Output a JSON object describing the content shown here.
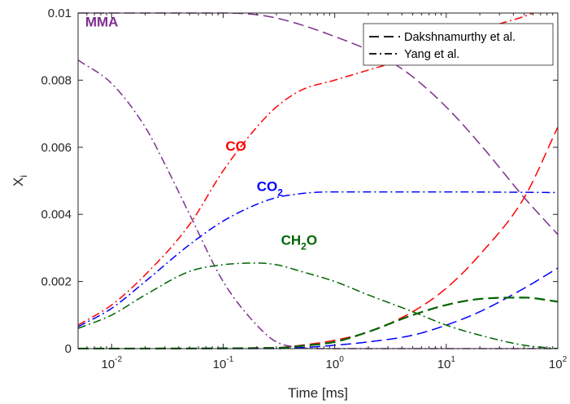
{
  "chart_data": {
    "type": "line",
    "xlabel": "Time [ms]",
    "ylabel": "X",
    "ylabel_sub": "i",
    "x_scale": "log",
    "xlim": [
      0.005,
      100
    ],
    "ylim": [
      0,
      0.01
    ],
    "x_ticks": [
      {
        "value": 0.01,
        "base": "10",
        "exp": "-2"
      },
      {
        "value": 0.1,
        "base": "10",
        "exp": "-1"
      },
      {
        "value": 1,
        "base": "10",
        "exp": "0"
      },
      {
        "value": 10,
        "base": "10",
        "exp": "1"
      },
      {
        "value": 100,
        "base": "10",
        "exp": "2"
      }
    ],
    "y_ticks": [
      {
        "value": 0,
        "label": "0"
      },
      {
        "value": 0.002,
        "label": "0.002"
      },
      {
        "value": 0.004,
        "label": "0.004"
      },
      {
        "value": 0.006,
        "label": "0.006"
      },
      {
        "value": 0.008,
        "label": "0.008"
      },
      {
        "value": 0.01,
        "label": "0.01"
      }
    ],
    "grid": false,
    "legend_position": "top-right",
    "legend": [
      {
        "label": "Dakshnamurthy et al.",
        "style": "dashed"
      },
      {
        "label": "Yang et al.",
        "style": "dashdot"
      }
    ],
    "annotations": [
      {
        "text": "MMA",
        "sub": "",
        "color": "#7E2F8E",
        "x": 0.0058,
        "y": 0.0096
      },
      {
        "text": "CO",
        "sub": "",
        "color": "#FF0000",
        "x": 0.105,
        "y": 0.0059
      },
      {
        "text": "CO",
        "sub": "2",
        "color": "#0000FF",
        "x": 0.2,
        "y": 0.0047
      },
      {
        "text": "CH",
        "sub": "2",
        "suffix": "O",
        "color": "#006400",
        "x": 0.33,
        "y": 0.0031
      }
    ],
    "series": [
      {
        "species": "MMA",
        "model": "Dakshnamurthy et al.",
        "style": "dashed",
        "color": "#7E2F8E",
        "width": 1.5,
        "x": [
          0.005,
          0.05,
          0.1,
          0.2,
          0.3,
          0.5,
          1,
          2,
          3,
          5,
          10,
          20,
          50,
          100
        ],
        "y": [
          0.01,
          0.01,
          0.01,
          0.00995,
          0.00985,
          0.00965,
          0.0093,
          0.0089,
          0.0086,
          0.0081,
          0.0072,
          0.0061,
          0.0045,
          0.0034
        ]
      },
      {
        "species": "MMA",
        "model": "Yang et al.",
        "style": "dashdot",
        "color": "#7E2F8E",
        "width": 1.5,
        "x": [
          0.005,
          0.01,
          0.02,
          0.03,
          0.05,
          0.1,
          0.2,
          0.3,
          0.5,
          0.7,
          1,
          100
        ],
        "y": [
          0.0086,
          0.0079,
          0.0066,
          0.0055,
          0.004,
          0.002,
          0.0007,
          0.0002,
          3e-05,
          0.0,
          0.0,
          0.0
        ]
      },
      {
        "species": "CO",
        "model": "Dakshnamurthy et al.",
        "style": "dashed",
        "color": "#FF0000",
        "width": 1.5,
        "x": [
          0.005,
          0.3,
          0.5,
          1,
          2,
          5,
          10,
          20,
          50,
          100
        ],
        "y": [
          0.0,
          3e-05,
          0.0001,
          0.00025,
          0.0005,
          0.0011,
          0.0018,
          0.0028,
          0.0045,
          0.0066
        ]
      },
      {
        "species": "CO",
        "model": "Yang et al.",
        "style": "dashdot",
        "color": "#FF0000",
        "width": 1.5,
        "x": [
          0.005,
          0.01,
          0.02,
          0.05,
          0.1,
          0.2,
          0.3,
          0.5,
          1,
          2,
          5,
          10,
          20,
          50,
          60
        ],
        "y": [
          0.0007,
          0.0013,
          0.0022,
          0.0037,
          0.0053,
          0.0066,
          0.0072,
          0.0077,
          0.008,
          0.0083,
          0.0087,
          0.0091,
          0.0095,
          0.0099,
          0.01
        ]
      },
      {
        "species": "CO2",
        "model": "Dakshnamurthy et al.",
        "style": "dashed",
        "color": "#0000FF",
        "width": 1.5,
        "x": [
          0.005,
          0.3,
          0.5,
          1,
          2,
          5,
          10,
          20,
          50,
          100
        ],
        "y": [
          0.0,
          0.0,
          3e-05,
          0.0001,
          0.0002,
          0.0004,
          0.0007,
          0.0011,
          0.0018,
          0.0024
        ]
      },
      {
        "species": "CO2",
        "model": "Yang et al.",
        "style": "dashdot",
        "color": "#0000FF",
        "width": 1.5,
        "x": [
          0.005,
          0.01,
          0.02,
          0.05,
          0.1,
          0.2,
          0.3,
          0.5,
          0.7,
          1,
          10,
          100
        ],
        "y": [
          0.00065,
          0.0012,
          0.002,
          0.0031,
          0.0038,
          0.0043,
          0.0045,
          0.00462,
          0.00466,
          0.00467,
          0.00467,
          0.00465
        ]
      },
      {
        "species": "CH2O",
        "model": "Dakshnamurthy et al.",
        "style": "dashed",
        "color": "#006400",
        "width": 2.2,
        "x": [
          0.005,
          0.3,
          0.5,
          1,
          2,
          5,
          10,
          20,
          50,
          100
        ],
        "y": [
          0.0,
          2e-05,
          8e-05,
          0.0002,
          0.0005,
          0.001,
          0.0013,
          0.00148,
          0.00152,
          0.0014
        ]
      },
      {
        "species": "CH2O",
        "model": "Yang et al.",
        "style": "dashdot",
        "color": "#006400",
        "width": 1.5,
        "x": [
          0.005,
          0.01,
          0.02,
          0.05,
          0.1,
          0.2,
          0.3,
          0.5,
          1,
          2,
          5,
          10,
          20,
          50,
          100
        ],
        "y": [
          0.0006,
          0.001,
          0.0016,
          0.0023,
          0.0025,
          0.00255,
          0.0025,
          0.0023,
          0.002,
          0.0016,
          0.0011,
          0.0007,
          0.0004,
          0.0001,
          0.0
        ]
      }
    ]
  }
}
